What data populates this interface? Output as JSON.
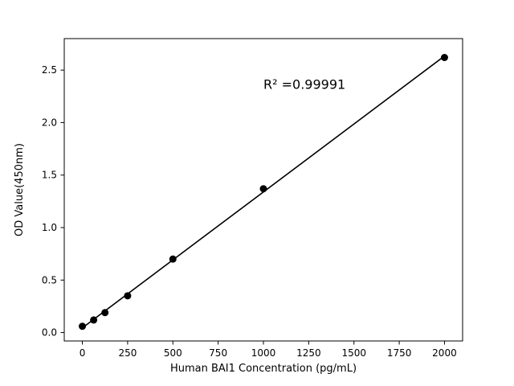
{
  "chart_data": {
    "type": "scatter",
    "title": "",
    "xlabel": "Human BAI1 Concentration (pg/mL)",
    "ylabel": "OD Value(450nm)",
    "x": [
      0,
      62.5,
      125,
      250,
      500,
      1000,
      2000
    ],
    "y": [
      0.06,
      0.12,
      0.19,
      0.35,
      0.7,
      1.37,
      2.62
    ],
    "xlim": [
      -100,
      2100
    ],
    "ylim": [
      -0.08,
      2.8
    ],
    "x_ticks": [
      0,
      250,
      500,
      750,
      1000,
      1250,
      1500,
      1750,
      2000
    ],
    "x_tick_labels": [
      "0",
      "250",
      "500",
      "750",
      "1000",
      "1250",
      "1500",
      "1750",
      "2000"
    ],
    "y_ticks": [
      0.0,
      0.5,
      1.0,
      1.5,
      2.0,
      2.5
    ],
    "y_tick_labels": [
      "0.0",
      "0.5",
      "1.0",
      "1.5",
      "2.0",
      "2.5"
    ],
    "annotation": {
      "text": "R² =0.99991",
      "x": 1000,
      "y": 2.32
    },
    "has_fit_line": true,
    "grid": false,
    "marker_color": "#000000",
    "line_color": "#000000",
    "background_color": "#ffffff",
    "axes_color": "#000000"
  }
}
